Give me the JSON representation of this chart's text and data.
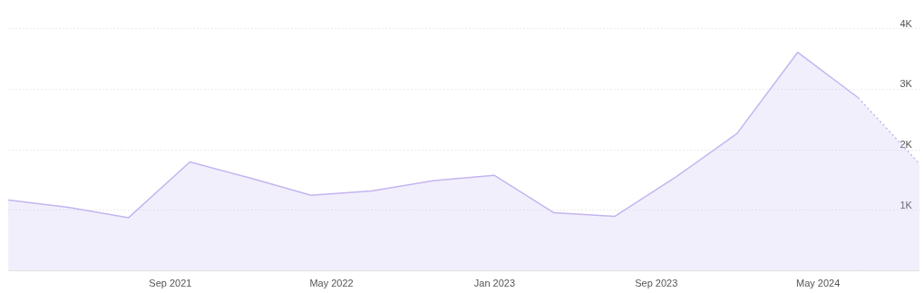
{
  "chart_data": {
    "type": "area",
    "x": [
      "2021-01",
      "2021-04",
      "2021-07",
      "2021-10",
      "2022-01",
      "2022-04",
      "2022-07",
      "2022-10",
      "2023-01",
      "2023-04",
      "2023-07",
      "2023-10",
      "2024-01",
      "2024-04",
      "2024-07",
      "2024-10"
    ],
    "series": [
      {
        "color": "#c4b5f0",
        "line_style": "solid",
        "values": [
          1160,
          1040,
          870,
          1790,
          1520,
          1240,
          1310,
          1480,
          1570,
          950,
          890,
          1540,
          2260,
          3600,
          2850,
          null
        ]
      },
      {
        "color": "#c4b5f0",
        "line_style": "dotted",
        "values": [
          null,
          null,
          null,
          null,
          null,
          null,
          null,
          null,
          null,
          null,
          null,
          null,
          null,
          null,
          2850,
          1760
        ]
      }
    ],
    "xlim": [
      "2021-01",
      "2024-10"
    ],
    "xticks": [
      {
        "value": "2021-09",
        "label": "Sep 2021"
      },
      {
        "value": "2022-05",
        "label": "May 2022"
      },
      {
        "value": "2023-01",
        "label": "Jan 2023"
      },
      {
        "value": "2023-09",
        "label": "Sep 2023"
      },
      {
        "value": "2024-05",
        "label": "May 2024"
      }
    ],
    "ylim": [
      0,
      4000
    ],
    "yticks": [
      {
        "value": 1000,
        "label": "1K"
      },
      {
        "value": 2000,
        "label": "2K"
      },
      {
        "value": 3000,
        "label": "3K"
      },
      {
        "value": 4000,
        "label": "4K"
      }
    ],
    "grid": "y"
  }
}
